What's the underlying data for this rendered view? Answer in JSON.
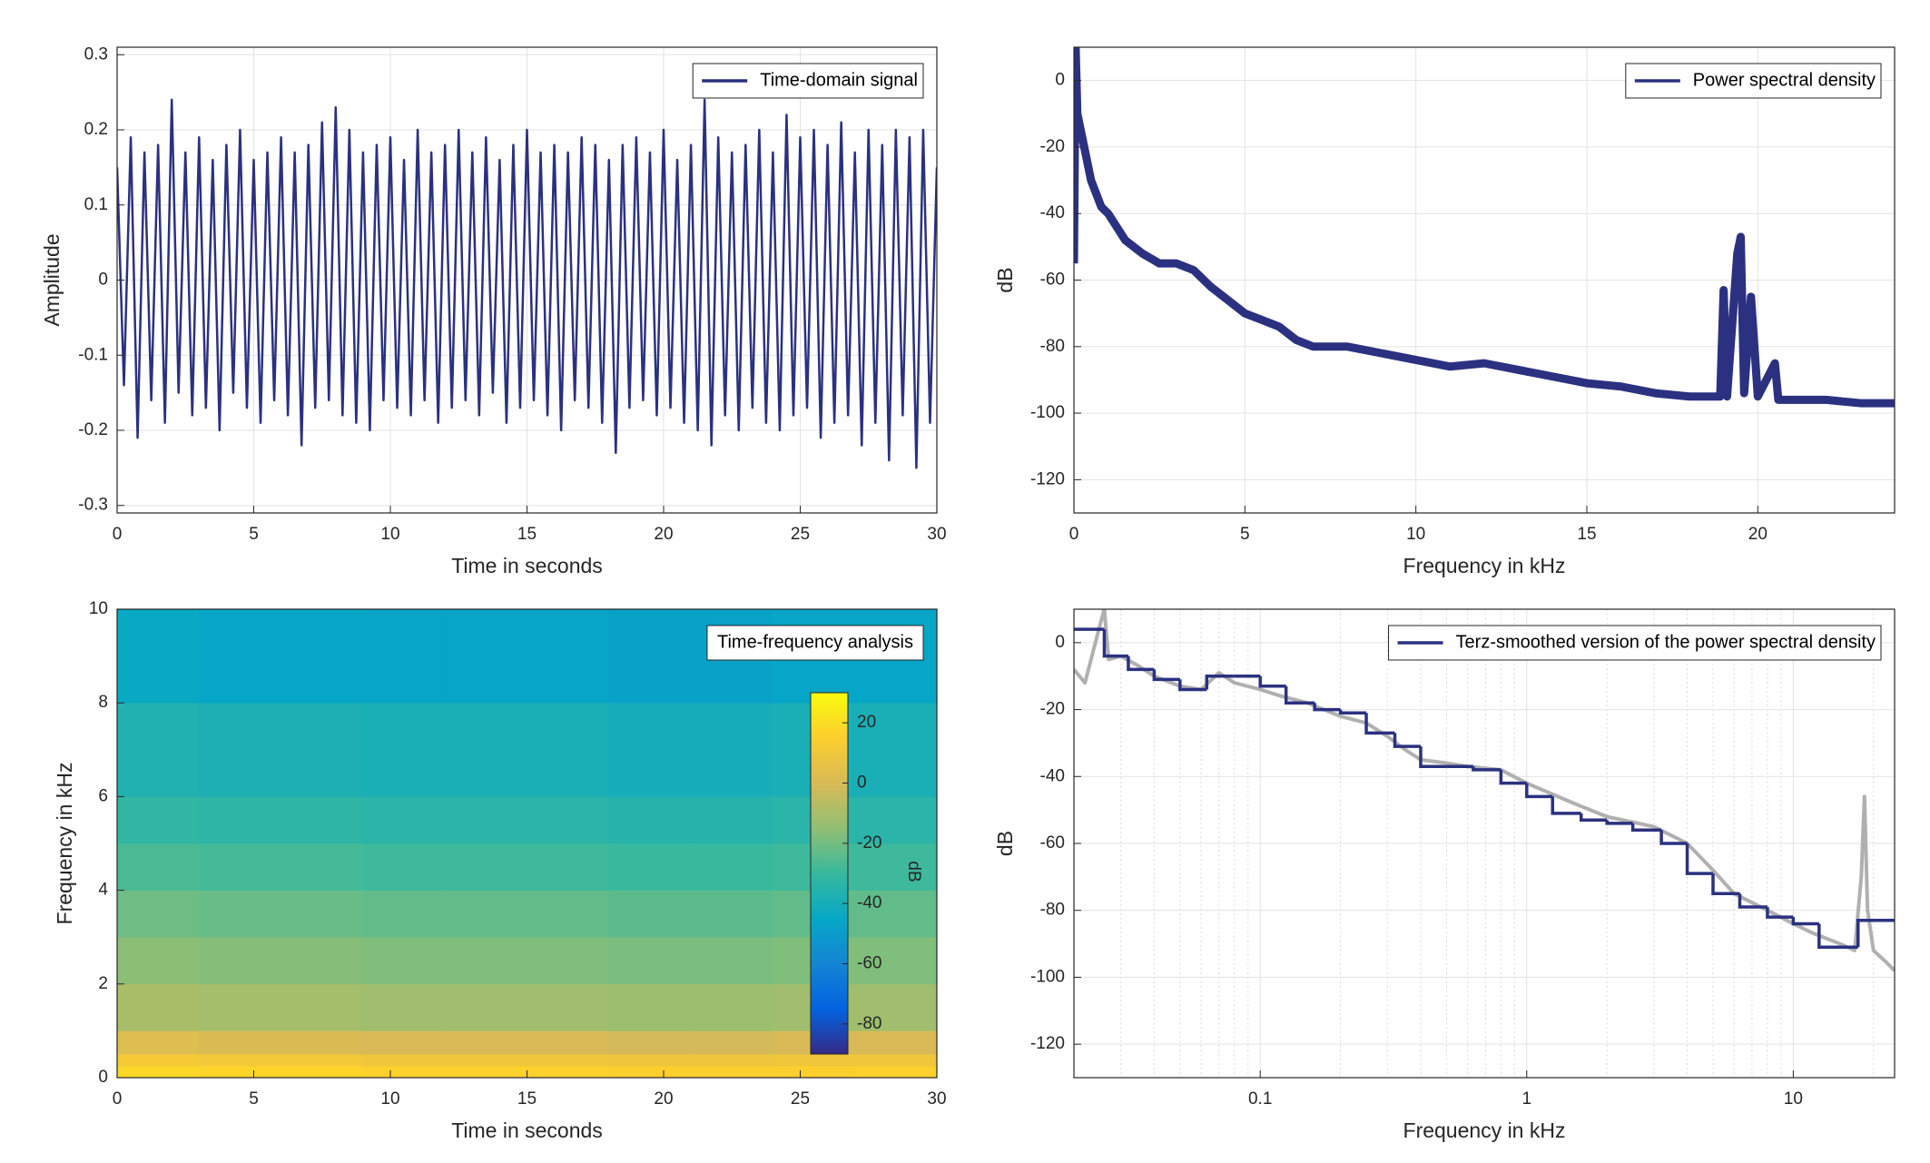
{
  "chart_data": [
    {
      "type": "line",
      "xlabel": "Time in seconds",
      "ylabel": "Amplitude",
      "xlim": [
        0,
        30
      ],
      "ylim": [
        -0.31,
        0.31
      ],
      "xticks": [
        0,
        5,
        10,
        15,
        20,
        25,
        30
      ],
      "yticks": [
        -0.3,
        -0.2,
        -0.1,
        0,
        0.1,
        0.2,
        0.3
      ],
      "grid": true,
      "legend": "northeast",
      "x": [
        0,
        0.25,
        0.5,
        0.75,
        1,
        1.25,
        1.5,
        1.75,
        2,
        2.25,
        2.5,
        2.75,
        3,
        3.25,
        3.5,
        3.75,
        4,
        4.25,
        4.5,
        4.75,
        5,
        5.25,
        5.5,
        5.75,
        6,
        6.25,
        6.5,
        6.75,
        7,
        7.25,
        7.5,
        7.75,
        8,
        8.25,
        8.5,
        8.75,
        9,
        9.25,
        9.5,
        9.75,
        10,
        10.25,
        10.5,
        10.75,
        11,
        11.25,
        11.5,
        11.75,
        12,
        12.25,
        12.5,
        12.75,
        13,
        13.25,
        13.5,
        13.75,
        14,
        14.25,
        14.5,
        14.75,
        15,
        15.25,
        15.5,
        15.75,
        16,
        16.25,
        16.5,
        16.75,
        17,
        17.25,
        17.5,
        17.75,
        18,
        18.25,
        18.5,
        18.75,
        19,
        19.25,
        19.5,
        19.75,
        20,
        20.25,
        20.5,
        20.75,
        21,
        21.25,
        21.5,
        21.75,
        22,
        22.25,
        22.5,
        22.75,
        23,
        23.25,
        23.5,
        23.75,
        24,
        24.25,
        24.5,
        24.75,
        25,
        25.25,
        25.5,
        25.75,
        26,
        26.25,
        26.5,
        26.75,
        27,
        27.25,
        27.5,
        27.75,
        28,
        28.25,
        28.5,
        28.75,
        29,
        29.25,
        29.5,
        29.75,
        30
      ],
      "series": [
        {
          "name": "Time-domain signal",
          "color": "#2b3180",
          "values": [
            0.15,
            -0.14,
            0.19,
            -0.21,
            0.17,
            -0.16,
            0.18,
            -0.19,
            0.24,
            -0.15,
            0.17,
            -0.18,
            0.19,
            -0.17,
            0.16,
            -0.2,
            0.18,
            -0.15,
            0.2,
            -0.17,
            0.16,
            -0.19,
            0.17,
            -0.16,
            0.19,
            -0.18,
            0.17,
            -0.22,
            0.18,
            -0.17,
            0.21,
            -0.16,
            0.23,
            -0.18,
            0.2,
            -0.19,
            0.17,
            -0.2,
            0.18,
            -0.16,
            0.19,
            -0.17,
            0.16,
            -0.18,
            0.2,
            -0.16,
            0.17,
            -0.19,
            0.18,
            -0.17,
            0.2,
            -0.16,
            0.17,
            -0.18,
            0.19,
            -0.15,
            0.16,
            -0.19,
            0.18,
            -0.17,
            0.2,
            -0.16,
            0.17,
            -0.18,
            0.18,
            -0.2,
            0.17,
            -0.16,
            0.19,
            -0.17,
            0.18,
            -0.19,
            0.16,
            -0.23,
            0.18,
            -0.17,
            0.19,
            -0.16,
            0.17,
            -0.18,
            0.2,
            -0.17,
            0.16,
            -0.19,
            0.18,
            -0.2,
            0.24,
            -0.22,
            0.19,
            -0.18,
            0.17,
            -0.2,
            0.18,
            -0.17,
            0.2,
            -0.19,
            0.17,
            -0.2,
            0.22,
            -0.18,
            0.19,
            -0.17,
            0.2,
            -0.21,
            0.18,
            -0.19,
            0.21,
            -0.18,
            0.17,
            -0.22,
            0.2,
            -0.19,
            0.18,
            -0.24,
            0.2,
            -0.18,
            0.19,
            -0.25,
            0.2,
            -0.19,
            0.15
          ]
        }
      ]
    },
    {
      "type": "line",
      "xlabel": "Frequency in kHz",
      "ylabel": "dB",
      "xlim": [
        0,
        24
      ],
      "ylim": [
        -130,
        10
      ],
      "xticks": [
        0,
        5,
        10,
        15,
        20
      ],
      "yticks": [
        -120,
        -100,
        -80,
        -60,
        -40,
        -20,
        0
      ],
      "grid": true,
      "legend": "northeast",
      "x": [
        0,
        0.05,
        0.1,
        0.3,
        0.5,
        0.8,
        1,
        1.5,
        2,
        2.5,
        3,
        3.5,
        4,
        4.5,
        5,
        5.5,
        6,
        6.5,
        7,
        8,
        9,
        10,
        11,
        12,
        13,
        14,
        15,
        16,
        17,
        18,
        18.9,
        19,
        19.1,
        19.4,
        19.5,
        19.6,
        19.8,
        20,
        20.5,
        20.6,
        21,
        22,
        23,
        24
      ],
      "series": [
        {
          "name": "Power spectral density",
          "color": "#2b3180",
          "values": [
            -55,
            10,
            -10,
            -20,
            -30,
            -38,
            -40,
            -48,
            -52,
            -55,
            -55,
            -57,
            -62,
            -66,
            -70,
            -72,
            -74,
            -78,
            -80,
            -80,
            -82,
            -84,
            -86,
            -85,
            -87,
            -89,
            -91,
            -92,
            -94,
            -95,
            -95,
            -63,
            -95,
            -52,
            -47,
            -94,
            -65,
            -95,
            -85,
            -96,
            -96,
            -96,
            -97,
            -97
          ]
        }
      ]
    },
    {
      "type": "heatmap",
      "xlabel": "Time in seconds",
      "ylabel": "Frequency in kHz",
      "xlim": [
        0,
        30
      ],
      "ylim": [
        0,
        10
      ],
      "xticks": [
        0,
        5,
        10,
        15,
        20,
        25,
        30
      ],
      "yticks": [
        0,
        2,
        4,
        6,
        8,
        10
      ],
      "legend": "northeast",
      "legend_text": "Time-frequency analysis",
      "colormap": "parula",
      "colorbar": {
        "label": "dB",
        "clim": [
          -90,
          30
        ],
        "ticks": [
          -80,
          -60,
          -40,
          -20,
          0,
          20
        ]
      },
      "xbins": [
        0,
        3,
        6,
        9,
        12,
        15,
        18,
        21,
        24,
        27,
        30
      ],
      "ybins": [
        0,
        0.25,
        0.5,
        1,
        2,
        3,
        4,
        5,
        6,
        8,
        10
      ],
      "z": [
        [
          18,
          17,
          17,
          16,
          16,
          16,
          15,
          15,
          15,
          16
        ],
        [
          12,
          11,
          11,
          10,
          10,
          10,
          9,
          9,
          10,
          10
        ],
        [
          2,
          1,
          1,
          0,
          0,
          0,
          -1,
          -1,
          0,
          0
        ],
        [
          -10,
          -11,
          -11,
          -12,
          -12,
          -12,
          -13,
          -13,
          -12,
          -12
        ],
        [
          -16,
          -17,
          -17,
          -18,
          -18,
          -18,
          -19,
          -19,
          -18,
          -18
        ],
        [
          -21,
          -22,
          -22,
          -23,
          -23,
          -23,
          -24,
          -24,
          -23,
          -23
        ],
        [
          -27,
          -28,
          -28,
          -29,
          -29,
          -29,
          -30,
          -30,
          -29,
          -29
        ],
        [
          -32,
          -33,
          -33,
          -34,
          -34,
          -34,
          -35,
          -35,
          -34,
          -34
        ],
        [
          -37,
          -38,
          -38,
          -39,
          -39,
          -39,
          -40,
          -40,
          -39,
          -39
        ],
        [
          -44,
          -45,
          -45,
          -46,
          -46,
          -46,
          -47,
          -47,
          -46,
          -46
        ]
      ]
    },
    {
      "type": "line",
      "xlabel": "Frequency in kHz",
      "ylabel": "dB",
      "xscale": "log",
      "xlim": [
        0.02,
        24
      ],
      "ylim": [
        -130,
        10
      ],
      "xticks": [
        0.1,
        1,
        10
      ],
      "yticks": [
        -120,
        -100,
        -80,
        -60,
        -40,
        -20,
        0
      ],
      "grid": true,
      "minor_grid": true,
      "legend": "northeast",
      "series": [
        {
          "color": "#b0b0b0",
          "x": [
            0.02,
            0.022,
            0.025,
            0.026,
            0.027,
            0.03,
            0.035,
            0.04,
            0.05,
            0.06,
            0.07,
            0.08,
            0.1,
            0.12,
            0.15,
            0.2,
            0.25,
            0.3,
            0.35,
            0.4,
            0.5,
            0.6,
            0.8,
            1,
            1.5,
            2,
            3,
            4,
            5,
            6,
            8,
            10,
            12,
            15,
            17,
            18,
            18.5,
            19,
            20,
            22,
            24
          ],
          "values": [
            -8,
            -12,
            5,
            10,
            -5,
            -4,
            -7,
            -10,
            -13,
            -14,
            -9,
            -12,
            -14,
            -16,
            -18,
            -22,
            -24,
            -28,
            -32,
            -35,
            -36,
            -37,
            -38,
            -42,
            -48,
            -52,
            -55,
            -60,
            -68,
            -75,
            -80,
            -84,
            -87,
            -90,
            -92,
            -70,
            -46,
            -80,
            -92,
            -95,
            -98
          ]
        },
        {
          "name": "Terz-smoothed version of the power spectral density",
          "color": "#2b3180",
          "drawstyle": "steps-post",
          "x": [
            0.02,
            0.026,
            0.032,
            0.04,
            0.05,
            0.063,
            0.08,
            0.1,
            0.125,
            0.16,
            0.2,
            0.25,
            0.32,
            0.4,
            0.5,
            0.63,
            0.8,
            1,
            1.25,
            1.6,
            2,
            2.5,
            3.2,
            4,
            5,
            6.3,
            8,
            10,
            12.5,
            17.5
          ],
          "values": [
            4,
            -4,
            -8,
            -11,
            -14,
            -10,
            -10,
            -13,
            -18,
            -20,
            -21,
            -27,
            -31,
            -37,
            -37,
            -38,
            -42,
            -46,
            -51,
            -53,
            -54,
            -56,
            -60,
            -69,
            -75,
            -79,
            -82,
            -84,
            -91,
            -83
          ]
        }
      ]
    }
  ]
}
